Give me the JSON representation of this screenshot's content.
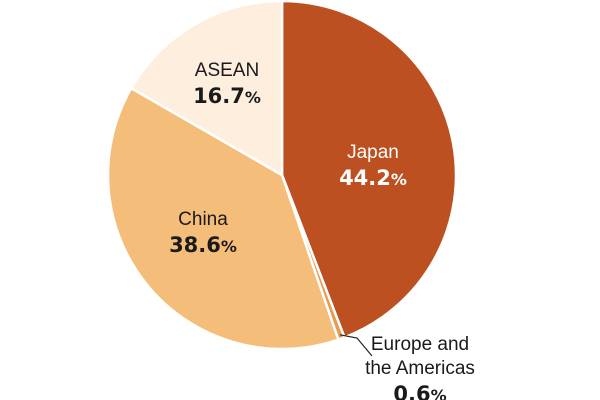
{
  "chart_data": {
    "type": "pie",
    "title": "",
    "unit": "%",
    "slices": [
      {
        "name": "Japan",
        "value": 44.2,
        "value_text": "44.2",
        "color": "#bc5020",
        "label_color": "#ffffff"
      },
      {
        "name": "Europe and the Americas",
        "name_lines": [
          "Europe and",
          "the Americas"
        ],
        "value": 0.6,
        "value_text": "0.6",
        "color": "#e79a52",
        "label_color": "#1a1a1a"
      },
      {
        "name": "China",
        "value": 38.6,
        "value_text": "38.6",
        "color": "#f5bd7a",
        "label_color": "#1a1a1a"
      },
      {
        "name": "ASEAN",
        "value": 16.7,
        "value_text": "16.7",
        "color": "#fdeede",
        "label_color": "#1a1a1a"
      }
    ],
    "start_angle_deg": 0,
    "direction": "clockwise",
    "legend": "none"
  }
}
